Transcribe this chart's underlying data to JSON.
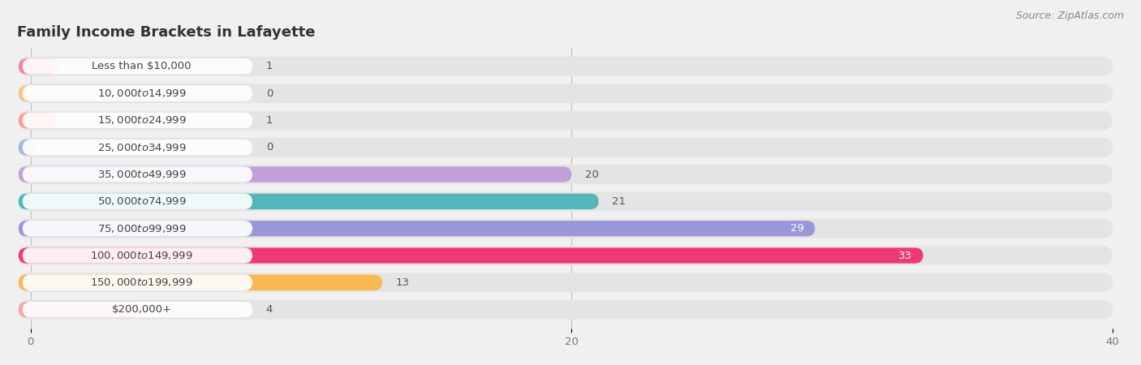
{
  "title": "Family Income Brackets in Lafayette",
  "source": "Source: ZipAtlas.com",
  "categories": [
    "Less than $10,000",
    "$10,000 to $14,999",
    "$15,000 to $24,999",
    "$25,000 to $34,999",
    "$35,000 to $49,999",
    "$50,000 to $74,999",
    "$75,000 to $99,999",
    "$100,000 to $149,999",
    "$150,000 to $199,999",
    "$200,000+"
  ],
  "values": [
    1,
    0,
    1,
    0,
    20,
    21,
    29,
    33,
    13,
    4
  ],
  "bar_colors": [
    "#f4869c",
    "#f9c48a",
    "#f4a090",
    "#a0b8e0",
    "#c0a0d8",
    "#50b8b8",
    "#9898d8",
    "#f03878",
    "#f9b850",
    "#f4a8a0"
  ],
  "background_color": "#f0f0f0",
  "bar_background_color": "#e4e4e4",
  "label_bg_color": "#ffffff",
  "xlim": [
    0,
    40
  ],
  "xticks": [
    0,
    20,
    40
  ],
  "title_fontsize": 13,
  "label_fontsize": 9.5,
  "value_fontsize": 9.5,
  "source_fontsize": 9,
  "value_white_threshold": 25
}
